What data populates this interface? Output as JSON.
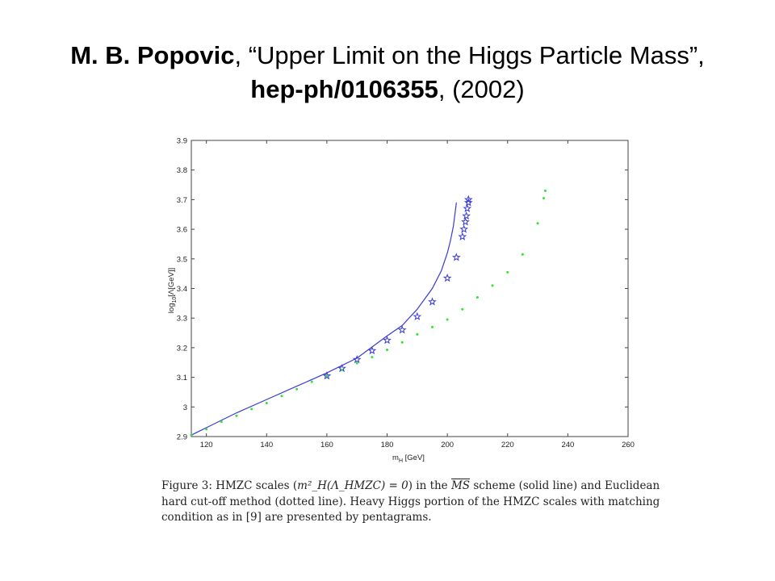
{
  "slide_title": {
    "author": "M. B. Popovic",
    "sep1": ", ",
    "paper_title": "“Upper Limit on the Higgs Particle Mass”,",
    "arxiv_id": "hep-ph/0106355",
    "year": ", (2002)"
  },
  "chart_data": {
    "type": "line",
    "xlabel": "m_H [GeV]",
    "ylabel": "log_10[Λ[GeV]]",
    "xlim": [
      115,
      260
    ],
    "ylim": [
      2.9,
      3.9
    ],
    "xticks": [
      "120",
      "140",
      "160",
      "180",
      "200",
      "220",
      "240",
      "260"
    ],
    "yticks": [
      "2.9",
      "3",
      "3.1",
      "3.2",
      "3.3",
      "3.4",
      "3.5",
      "3.6",
      "3.7",
      "3.8",
      "3.9"
    ],
    "grid": false,
    "series": [
      {
        "style": "solid line",
        "color": "#3a3ad6",
        "x": [
          115,
          120,
          130,
          140,
          150,
          160,
          170,
          180,
          185,
          190,
          195,
          198,
          200,
          201,
          202,
          203
        ],
        "y": [
          2.905,
          2.93,
          2.98,
          3.025,
          3.07,
          3.115,
          3.165,
          3.24,
          3.275,
          3.33,
          3.4,
          3.46,
          3.52,
          3.56,
          3.61,
          3.69
        ]
      },
      {
        "style": "pentagrams",
        "color": "#3a3ad6",
        "x": [
          160,
          165,
          170,
          175,
          180,
          185,
          190,
          195,
          200,
          203,
          205,
          205.5,
          206,
          206.3,
          206.6,
          207,
          207
        ],
        "y": [
          3.105,
          3.13,
          3.16,
          3.19,
          3.225,
          3.26,
          3.305,
          3.355,
          3.435,
          3.505,
          3.575,
          3.6,
          3.625,
          3.645,
          3.67,
          3.69,
          3.7
        ]
      },
      {
        "style": "dotted line",
        "color": "#2ee62e",
        "x": [
          115,
          120,
          125,
          130,
          135,
          140,
          145,
          150,
          155,
          160,
          165,
          170,
          175,
          180,
          185,
          190,
          195,
          200,
          205,
          210,
          215,
          220,
          225,
          230,
          232,
          232.5
        ],
        "y": [
          2.905,
          2.925,
          2.95,
          2.97,
          2.993,
          3.013,
          3.037,
          3.06,
          3.085,
          3.105,
          3.125,
          3.148,
          3.168,
          3.193,
          3.218,
          3.245,
          3.27,
          3.295,
          3.33,
          3.37,
          3.41,
          3.455,
          3.515,
          3.62,
          3.705,
          3.73
        ]
      }
    ]
  },
  "caption": {
    "figure_label": "Figure 3:",
    "text_a": "HMZC scales (",
    "math_inline": "m²_H(Λ_HMZC) = 0",
    "text_b": ") in the",
    "ms_symbol": "MS",
    "text_c": "scheme (solid line) and Euclidean hard cut-off method (dotted line). Heavy Higgs portion of the HMZC scales with matching condition as in [9] are presented by pentagrams."
  }
}
